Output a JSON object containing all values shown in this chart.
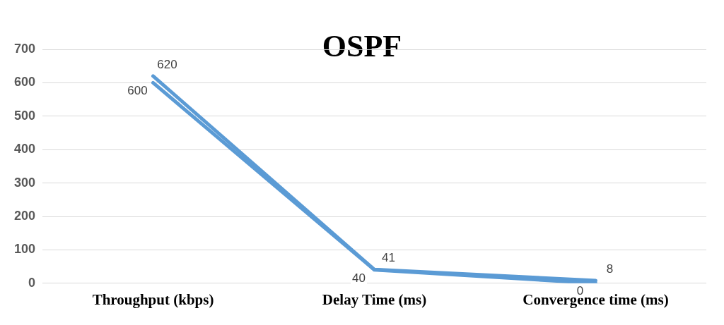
{
  "chart_data": {
    "type": "line",
    "title": "OSPF",
    "categories": [
      "Throughput (kbps)",
      "Delay Time (ms)",
      "Convergence time (ms)"
    ],
    "series": [
      {
        "color": "#5b9bd5",
        "values": [
          600,
          40,
          0
        ]
      },
      {
        "color": "#5b9bd5",
        "values": [
          620,
          41,
          8
        ]
      }
    ],
    "ylim": [
      0,
      700
    ],
    "yticks": [
      0,
      100,
      200,
      300,
      400,
      500,
      600,
      700
    ],
    "grid": "y",
    "legend": false,
    "marker": "none",
    "data_labels": true
  }
}
